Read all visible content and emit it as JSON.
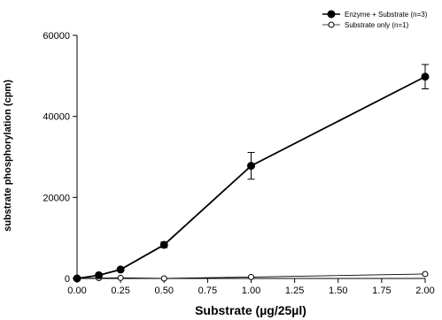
{
  "chart_data": {
    "type": "line",
    "xlabel": "Substrate (µg/25µl)",
    "ylabel": "substrate phosphorylation (cpm)",
    "xlim": [
      0,
      2
    ],
    "ylim": [
      0,
      60000
    ],
    "x_ticks": [
      "0.00",
      "0.25",
      "0.50",
      "0.75",
      "1.00",
      "1.25",
      "1.50",
      "1.75",
      "2.00"
    ],
    "y_ticks": [
      "0",
      "20000",
      "40000",
      "60000"
    ],
    "legend_position": "top-right",
    "series": [
      {
        "name": "Enzyme + Substrate (n=3)",
        "marker": "filled-circle",
        "color": "#000000",
        "x": [
          0,
          0.125,
          0.25,
          0.5,
          1.0,
          2.0
        ],
        "y": [
          0,
          800,
          2200,
          8300,
          27800,
          49800
        ],
        "error": [
          0,
          250,
          350,
          700,
          3300,
          3000
        ]
      },
      {
        "name": "Substrate only (n=1)",
        "marker": "open-circle",
        "color": "#000000",
        "x": [
          0,
          0.125,
          0.25,
          0.5,
          1.0,
          2.0
        ],
        "y": [
          0,
          100,
          150,
          0,
          350,
          1100
        ]
      }
    ]
  }
}
